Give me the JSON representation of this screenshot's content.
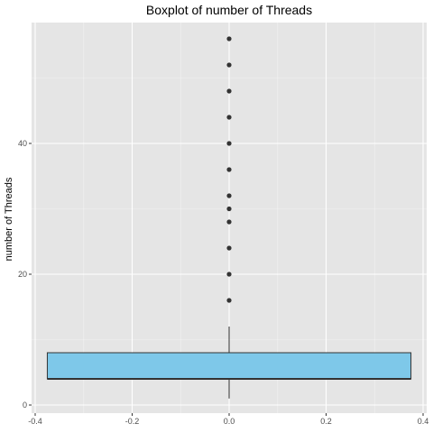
{
  "chart_data": {
    "type": "boxplot",
    "title": "Boxplot of number of Threads",
    "xlabel": "",
    "ylabel": "number of Threads",
    "xlim": [
      -0.4,
      0.4
    ],
    "ylim": [
      0,
      60
    ],
    "x_ticks": [
      -0.4,
      -0.2,
      0.0,
      0.2,
      0.4
    ],
    "x_tick_labels": [
      "-0.4",
      "-0.2",
      "0.0",
      "0.2",
      "0.4"
    ],
    "y_ticks": [
      0,
      20,
      40
    ],
    "y_tick_labels": [
      "0",
      "20",
      "40"
    ],
    "grid": true,
    "box": {
      "x_center": 0,
      "x_half_width": 0.375,
      "whisker_low": 1,
      "q1": 4,
      "median": 4,
      "q3": 8,
      "whisker_high": 12
    },
    "outliers": [
      16,
      20,
      24,
      28,
      30,
      32,
      36,
      40,
      44,
      48,
      52,
      56
    ],
    "colors": {
      "box_fill": "#7ec8e9",
      "box_stroke": "#333333",
      "outlier": "#333333",
      "panel_bg": "#e5e5e5",
      "grid_major": "#ffffff",
      "grid_minor": "#f2f2f2"
    }
  }
}
